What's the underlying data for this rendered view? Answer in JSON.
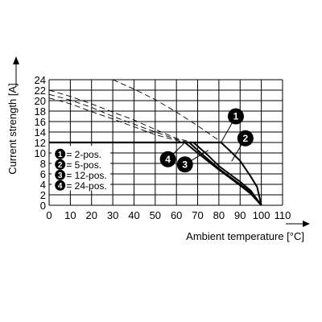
{
  "chart_data": {
    "type": "line",
    "xlabel": "Ambient temperature [°C]",
    "ylabel": "Current strength [A]",
    "xlim": [
      0,
      110
    ],
    "ylim": [
      0,
      24
    ],
    "x_ticks": [
      0,
      10,
      20,
      30,
      40,
      50,
      60,
      70,
      80,
      90,
      100,
      110
    ],
    "y_ticks": [
      0,
      2,
      4,
      6,
      8,
      10,
      12,
      14,
      16,
      18,
      20,
      22,
      24
    ],
    "grid": true,
    "legend_position": "left",
    "legend": [
      {
        "marker": "1",
        "label": "= 2-pos."
      },
      {
        "marker": "2",
        "label": "= 5-pos."
      },
      {
        "marker": "3",
        "label": "= 12-pos."
      },
      {
        "marker": "4",
        "label": "= 24-pos."
      }
    ],
    "limit_current": 12,
    "series": [
      {
        "marker": "1",
        "derating": [
          [
            81,
            12
          ],
          [
            85,
            10.5
          ],
          [
            90,
            8.5
          ],
          [
            95,
            5.5
          ],
          [
            98,
            3.5
          ],
          [
            100,
            0
          ]
        ],
        "dashed": [
          [
            30,
            24
          ],
          [
            40,
            22.2
          ],
          [
            50,
            20.2
          ],
          [
            60,
            17.8
          ],
          [
            70,
            15.2
          ],
          [
            80,
            12.4
          ],
          [
            81,
            12
          ]
        ]
      },
      {
        "marker": "2",
        "derating": [
          [
            68,
            12
          ],
          [
            75,
            9.5
          ],
          [
            80,
            7.5
          ],
          [
            90,
            4.5
          ],
          [
            95,
            2.8
          ],
          [
            100,
            0
          ]
        ],
        "dashed": [
          [
            0,
            22
          ],
          [
            10,
            20.8
          ],
          [
            20,
            19.4
          ],
          [
            30,
            17.8
          ],
          [
            40,
            16.3
          ],
          [
            50,
            14.5
          ],
          [
            60,
            12.8
          ],
          [
            68,
            12
          ]
        ]
      },
      {
        "marker": "3",
        "derating": [
          [
            66,
            12
          ],
          [
            72,
            9.8
          ],
          [
            80,
            7
          ],
          [
            90,
            4
          ],
          [
            95,
            2.5
          ],
          [
            100,
            0
          ]
        ],
        "dashed": [
          [
            0,
            21.2
          ],
          [
            10,
            20.1
          ],
          [
            20,
            18.7
          ],
          [
            30,
            17
          ],
          [
            40,
            15.5
          ],
          [
            50,
            14
          ],
          [
            60,
            12.6
          ],
          [
            66,
            12
          ]
        ]
      },
      {
        "marker": "4",
        "derating": [
          [
            64,
            12
          ],
          [
            70,
            10
          ],
          [
            80,
            6.8
          ],
          [
            90,
            3.8
          ],
          [
            95,
            2.2
          ],
          [
            100,
            0
          ]
        ],
        "dashed": [
          [
            0,
            20.5
          ],
          [
            10,
            19.4
          ],
          [
            20,
            17.9
          ],
          [
            30,
            16.5
          ],
          [
            40,
            15
          ],
          [
            50,
            13.5
          ],
          [
            60,
            12.4
          ],
          [
            64,
            12
          ]
        ]
      }
    ],
    "callouts": [
      {
        "marker": "1",
        "x": 88,
        "y": 17,
        "points_to": [
          81,
          12
        ]
      },
      {
        "marker": "2",
        "x": 92.5,
        "y": 12.8,
        "points_to": [
          86,
          8.4
        ]
      },
      {
        "marker": "3",
        "x": 64,
        "y": 7.8,
        "points_to": [
          75,
          10.5
        ]
      },
      {
        "marker": "4",
        "x": 56,
        "y": 8.8,
        "points_to": [
          64,
          12
        ]
      }
    ]
  }
}
